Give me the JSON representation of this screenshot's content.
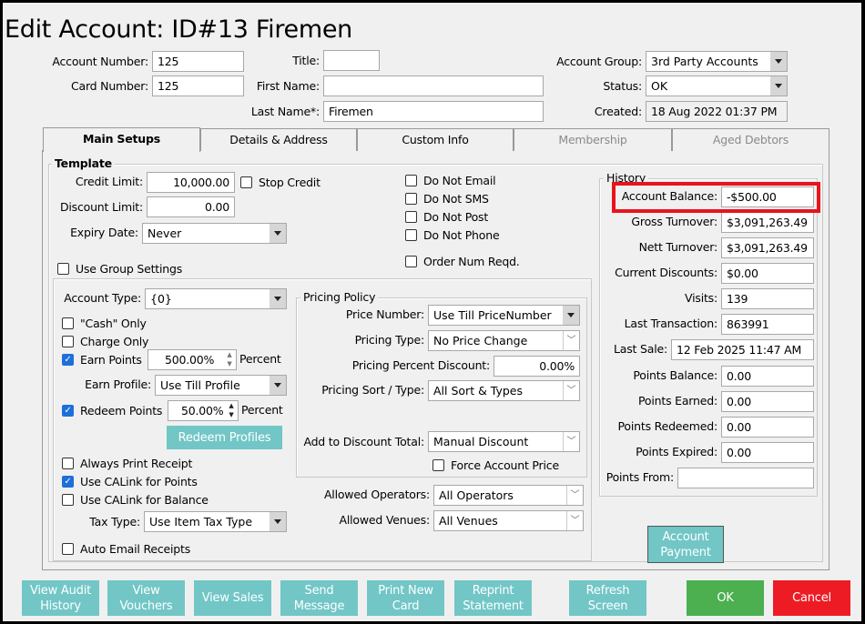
{
  "window": {
    "title": "Edit Account: ID#13 Firemen"
  },
  "header": {
    "account_number": {
      "label": "Account Number:",
      "value": "125"
    },
    "card_number": {
      "label": "Card Number:",
      "value": "125"
    },
    "title": {
      "label": "Title:",
      "value": ""
    },
    "first_name": {
      "label": "First Name:",
      "value": ""
    },
    "last_name": {
      "label": "Last Name*:",
      "value": "Firemen"
    },
    "account_group": {
      "label": "Account Group:",
      "value": "3rd Party Accounts"
    },
    "status": {
      "label": "Status:",
      "value": "OK"
    },
    "created": {
      "label": "Created:",
      "value": "18 Aug 2022 01:37 PM"
    }
  },
  "tabs": [
    {
      "label": "Main Setups",
      "active": true
    },
    {
      "label": "Details & Address"
    },
    {
      "label": "Custom Info"
    },
    {
      "label": "Membership",
      "disabled": true
    },
    {
      "label": "Aged Debtors",
      "disabled": true
    }
  ],
  "template": {
    "legend": "Template",
    "credit_limit": {
      "label": "Credit Limit:",
      "value": "10,000.00"
    },
    "stop_credit": {
      "label": "Stop Credit",
      "checked": false
    },
    "discount_limit": {
      "label": "Discount Limit:",
      "value": "0.00"
    },
    "expiry_date": {
      "label": "Expiry Date:",
      "value": "Never"
    },
    "use_group_settings": {
      "label": "Use Group Settings",
      "checked": false
    },
    "comm": [
      {
        "label": "Do Not Email",
        "checked": false
      },
      {
        "label": "Do Not SMS",
        "checked": false
      },
      {
        "label": "Do Not Post",
        "checked": false
      },
      {
        "label": "Do Not Phone",
        "checked": false
      }
    ],
    "order_num": {
      "label": "Order Num Reqd.",
      "checked": false
    },
    "account_type": {
      "label": "Account Type:",
      "value": "{0}"
    },
    "cash_only": {
      "label": "\"Cash\" Only",
      "checked": false
    },
    "charge_only": {
      "label": "Charge Only",
      "checked": false
    },
    "earn_points": {
      "label": "Earn Points",
      "checked": true,
      "value": "500.00%",
      "unit": "Percent"
    },
    "earn_profile": {
      "label": "Earn Profile:",
      "value": "Use Till Profile"
    },
    "redeem_points": {
      "label": "Redeem Points",
      "checked": true,
      "value": "50.00%",
      "unit": "Percent"
    },
    "redeem_profiles_button": "Redeem Profiles",
    "always_print": {
      "label": "Always Print Receipt",
      "checked": false
    },
    "calink_points": {
      "label": "Use CALink for Points",
      "checked": true
    },
    "calink_balance": {
      "label": "Use CALink for Balance",
      "checked": false
    },
    "tax_type": {
      "label": "Tax Type:",
      "value": "Use Item Tax Type"
    },
    "auto_email": {
      "label": "Auto Email Receipts",
      "checked": false
    }
  },
  "pricing": {
    "legend": "Pricing Policy",
    "price_number": {
      "label": "Price Number:",
      "value": "Use Till PriceNumber"
    },
    "pricing_type": {
      "label": "Pricing Type:",
      "value": "No Price Change"
    },
    "percent_discount": {
      "label": "Pricing Percent Discount:",
      "value": "0.00%"
    },
    "sort_type": {
      "label": "Pricing Sort / Type:",
      "value": "All Sort & Types"
    },
    "add_discount": {
      "label": "Add to Discount Total:",
      "value": "Manual Discount"
    },
    "force_price": {
      "label": "Force Account Price",
      "checked": false
    },
    "allowed_operators": {
      "label": "Allowed Operators:",
      "value": "All Operators"
    },
    "allowed_venues": {
      "label": "Allowed Venues:",
      "value": "All Venues"
    }
  },
  "history": {
    "legend": "History",
    "highlight_color": "#e8141c",
    "rows": [
      {
        "label": "Account Balance:",
        "value": "-$500.00"
      },
      {
        "label": "Gross Turnover:",
        "value": "$3,091,263.49"
      },
      {
        "label": "Nett Turnover:",
        "value": "$3,091,263.49"
      },
      {
        "label": "Current Discounts:",
        "value": "$0.00"
      },
      {
        "label": "Visits:",
        "value": "139"
      },
      {
        "label": "Last Transaction:",
        "value": "863991"
      },
      {
        "label": "Last Sale:",
        "value": "12 Feb 2025 11:47 AM"
      },
      {
        "label": "Points Balance:",
        "value": "0.00"
      },
      {
        "label": "Points Earned:",
        "value": "0.00"
      },
      {
        "label": "Points Redeemed:",
        "value": "0.00"
      },
      {
        "label": "Points Expired:",
        "value": "0.00"
      },
      {
        "label": "Points From:",
        "value": ""
      }
    ],
    "account_payment_button": "Account Payment"
  },
  "footer": {
    "buttons": [
      "View Audit History",
      "View Vouchers",
      "View Sales",
      "Send Message",
      "Print New Card",
      "Reprint Statement",
      "Refresh Screen"
    ],
    "ok": "OK",
    "cancel": "Cancel",
    "colors": {
      "teal": "#72c6c6",
      "ok": "#4caf50",
      "cancel": "#ed1c24"
    }
  }
}
